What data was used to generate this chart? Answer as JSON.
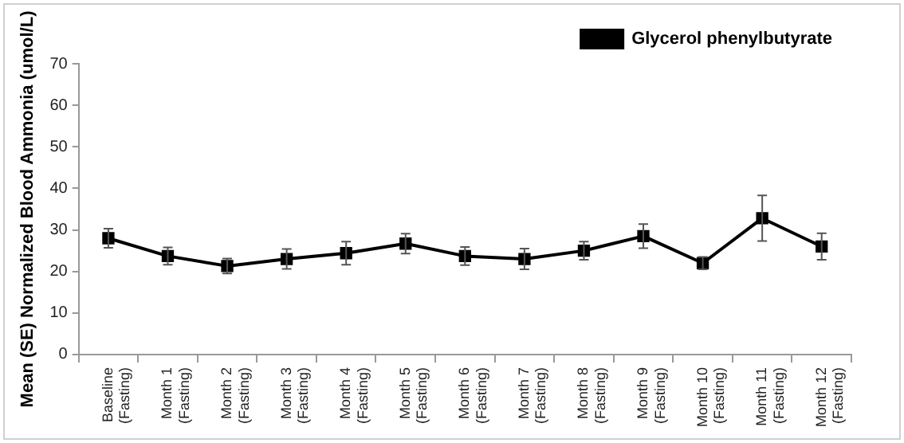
{
  "chart_data": {
    "type": "line",
    "ylabel": "Mean (SE) Normalized Blood Ammonia (umol/L)",
    "categories": [
      "Baseline\n(Fasting)",
      "Month 1\n(Fasting)",
      "Month 2\n(Fasting)",
      "Month 3\n(Fasting)",
      "Month 4\n(Fasting)",
      "Month 5\n(Fasting)",
      "Month 6\n(Fasting)",
      "Month 7\n(Fasting)",
      "Month 8\n(Fasting)",
      "Month 9\n(Fasting)",
      "Month 10\n(Fasting)",
      "Month 11\n(Fasting)",
      "Month 12\n(Fasting)"
    ],
    "series": [
      {
        "name": "Glycerol phenylbutyrate",
        "color": "#000000",
        "values": [
          28,
          23.7,
          21.3,
          23,
          24.4,
          26.7,
          23.7,
          23,
          25,
          28.5,
          22,
          32.8,
          26
        ],
        "errors": [
          2.3,
          2.1,
          1.8,
          2.4,
          2.8,
          2.4,
          2.2,
          2.5,
          2.2,
          2.9,
          1.5,
          5.5,
          3.2
        ]
      }
    ],
    "ylim": [
      0,
      70
    ],
    "yticks": [
      0,
      10,
      20,
      30,
      40,
      50,
      60,
      70
    ],
    "grid": false,
    "legend": "top right",
    "marker": "square",
    "line_style": "solid"
  }
}
